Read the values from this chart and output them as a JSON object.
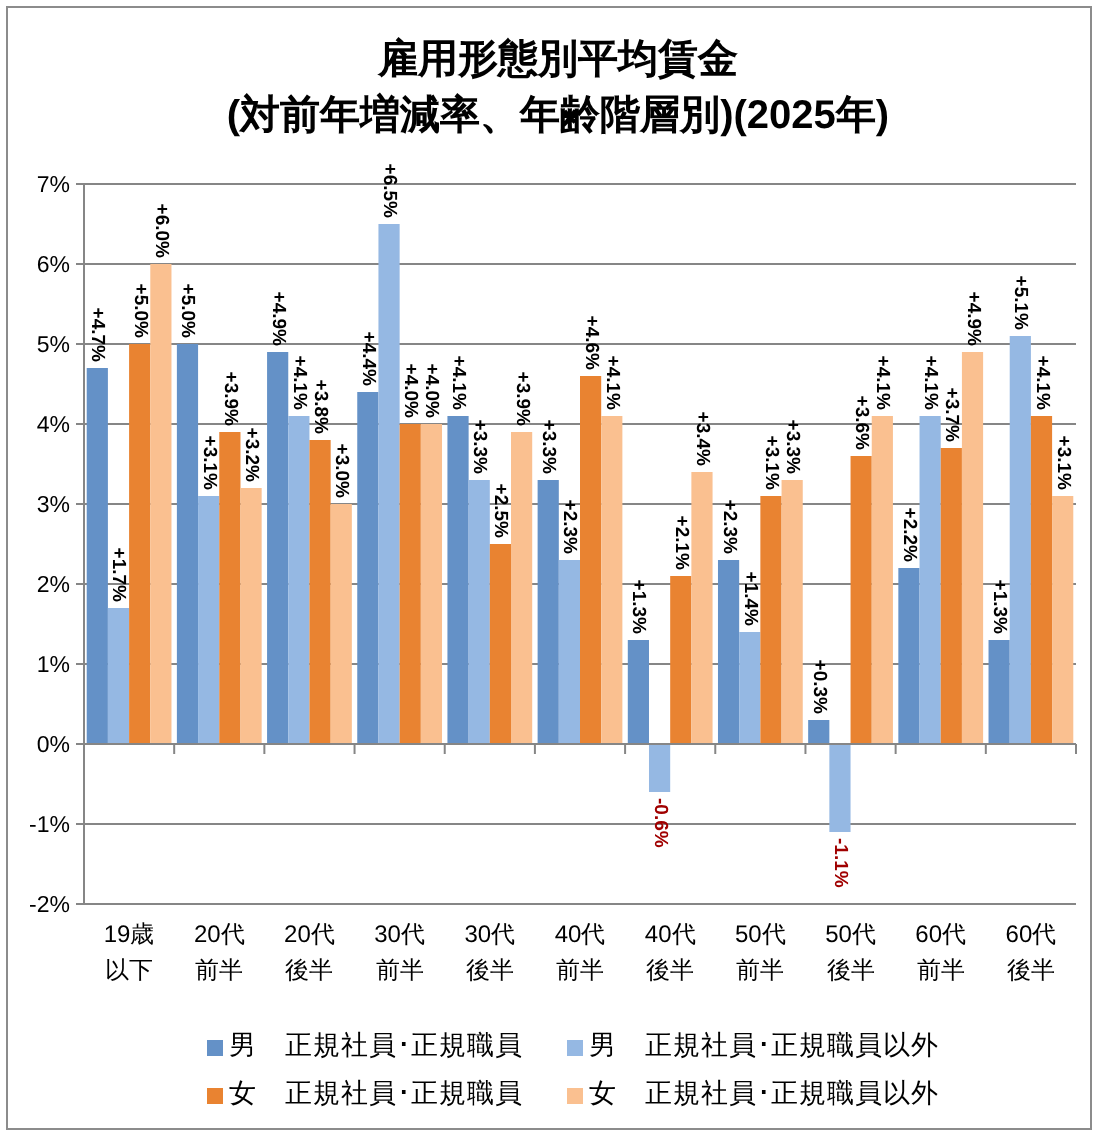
{
  "chart_data": {
    "type": "bar",
    "title": "雇用形態別平均賃金",
    "subtitle": "(対前年増減率、年齢階層別)(2025年)",
    "categories": [
      "19歳以下",
      "20代前半",
      "20代後半",
      "30代前半",
      "30代後半",
      "40代前半",
      "40代後半",
      "50代前半",
      "50代後半",
      "60代前半",
      "60代後半"
    ],
    "series": [
      {
        "name": "男　正規社員･正規職員",
        "color": "#6491c7",
        "values": [
          4.7,
          5.0,
          4.9,
          4.4,
          4.1,
          3.3,
          1.3,
          2.3,
          0.3,
          2.2,
          1.3
        ],
        "value_labels": [
          "+4.7%",
          "+5.0%",
          "+4.9%",
          "+4.4%",
          "+4.1%",
          "+3.3%",
          "+1.3%",
          "+2.3%",
          "+0.3%",
          "+2.2%",
          "+1.3%"
        ]
      },
      {
        "name": "男　正規社員･正規職員以外",
        "color": "#95b8e3",
        "values": [
          1.7,
          3.1,
          4.1,
          6.5,
          3.3,
          2.3,
          -0.6,
          1.4,
          -1.1,
          4.1,
          5.1
        ],
        "value_labels": [
          "+1.7%",
          "+3.1%",
          "+4.1%",
          "+6.5%",
          "+3.3%",
          "+2.3%",
          "-0.6%",
          "+1.4%",
          "-1.1%",
          "+4.1%",
          "+5.1%"
        ]
      },
      {
        "name": "女　正規社員･正規職員",
        "color": "#e98331",
        "values": [
          5.0,
          3.9,
          3.8,
          4.0,
          2.5,
          4.6,
          2.1,
          3.1,
          3.6,
          3.7,
          4.1
        ],
        "value_labels": [
          "+5.0%",
          "+3.9%",
          "+3.8%",
          "+4.0%",
          "+2.5%",
          "+4.6%",
          "+2.1%",
          "+3.1%",
          "+3.6%",
          "+3.7%",
          "+4.1%"
        ]
      },
      {
        "name": "女　正規社員･正規職員以外",
        "color": "#fac090",
        "values": [
          6.0,
          3.2,
          3.0,
          4.0,
          3.9,
          4.1,
          3.4,
          3.3,
          4.1,
          4.9,
          3.1
        ],
        "value_labels": [
          "+6.0%",
          "+3.2%",
          "+3.0%",
          "+4.0%",
          "+3.9%",
          "+4.1%",
          "+3.4%",
          "+3.3%",
          "+4.1%",
          "+4.9%",
          "+3.1%"
        ]
      }
    ],
    "ylim": [
      -2,
      7
    ],
    "yticks": [
      {
        "value": -2,
        "label": "-2%"
      },
      {
        "value": -1,
        "label": "-1%"
      },
      {
        "value": 0,
        "label": "0%"
      },
      {
        "value": 1,
        "label": "1%"
      },
      {
        "value": 2,
        "label": "2%"
      },
      {
        "value": 3,
        "label": "3%"
      },
      {
        "value": 4,
        "label": "4%"
      },
      {
        "value": 5,
        "label": "5%"
      },
      {
        "value": 6,
        "label": "6%"
      },
      {
        "value": 7,
        "label": "7%"
      }
    ],
    "grid": "y",
    "legend": "bottom"
  }
}
